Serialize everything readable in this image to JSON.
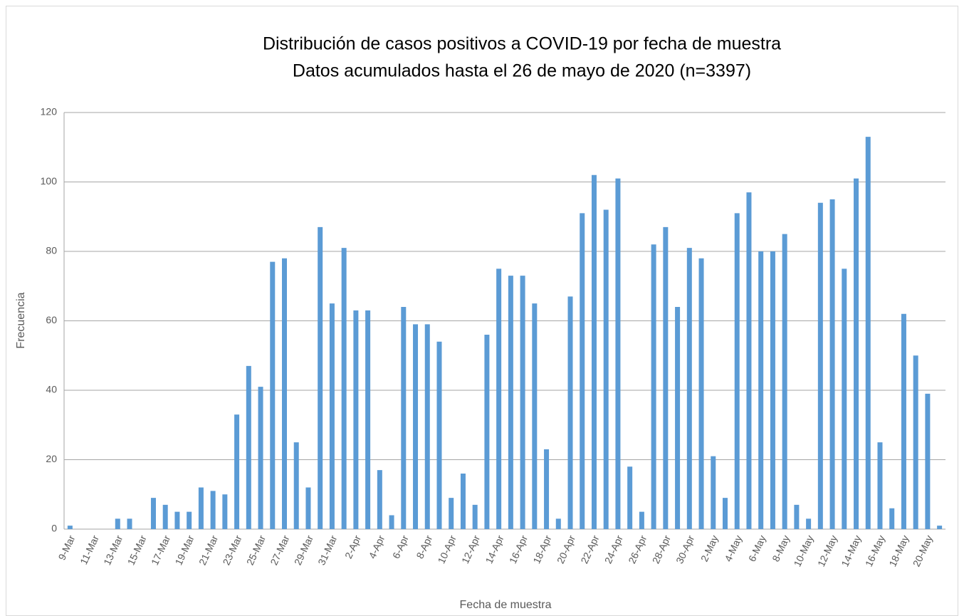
{
  "chart_data": {
    "type": "bar",
    "title": "Distribución de casos positivos a COVID-19 por fecha de muestra",
    "subtitle": "Datos acumulados hasta el 26 de mayo de 2020  (n=3397)",
    "y_label": "Frecuencia",
    "x_label": "Fecha de muestra",
    "categories": [
      "9-Mar",
      null,
      "11-Mar",
      null,
      "13-Mar",
      null,
      "15-Mar",
      null,
      "17-Mar",
      null,
      "19-Mar",
      null,
      "21-Mar",
      null,
      "23-Mar",
      null,
      "25-Mar",
      null,
      "27-Mar",
      null,
      "29-Mar",
      null,
      "31-Mar",
      null,
      "2-Apr",
      null,
      "4-Apr",
      null,
      "6-Apr",
      null,
      "8-Apr",
      null,
      "10-Apr",
      null,
      "12-Apr",
      null,
      "14-Apr",
      null,
      "16-Apr",
      null,
      "18-Apr",
      null,
      "20-Apr",
      null,
      "22-Apr",
      null,
      "24-Apr",
      null,
      "26-Apr",
      null,
      "28-Apr",
      null,
      "30-Apr",
      null,
      "2-May",
      null,
      "4-May",
      null,
      "6-May",
      null,
      "8-May",
      null,
      "10-May",
      null,
      "12-May",
      null,
      "14-May",
      null,
      "16-May",
      null,
      "18-May",
      null,
      "20-May",
      null
    ],
    "values": [
      1,
      0,
      0,
      0,
      3,
      3,
      0,
      9,
      7,
      5,
      5,
      12,
      11,
      10,
      33,
      47,
      41,
      77,
      78,
      25,
      12,
      87,
      65,
      81,
      63,
      63,
      17,
      4,
      64,
      59,
      59,
      54,
      9,
      16,
      7,
      56,
      75,
      73,
      73,
      65,
      23,
      3,
      67,
      91,
      102,
      92,
      101,
      18,
      5,
      82,
      87,
      64,
      81,
      78,
      21,
      9,
      91,
      97,
      80,
      80,
      85,
      7,
      3,
      94,
      95,
      75,
      101,
      113,
      25,
      6,
      62,
      50,
      39,
      1
    ],
    "color": "#5b9bd5",
    "ylim": [
      0,
      120
    ],
    "yticks": [
      0,
      20,
      40,
      60,
      80,
      100,
      120
    ],
    "grid": true
  }
}
